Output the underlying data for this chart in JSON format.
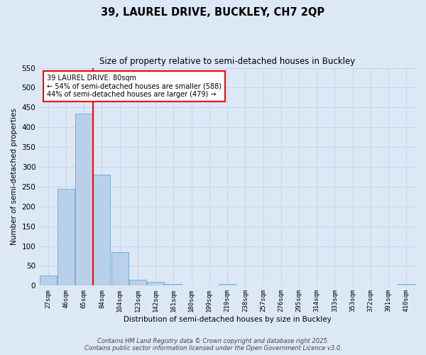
{
  "title_line1": "39, LAUREL DRIVE, BUCKLEY, CH7 2QP",
  "title_line2": "Size of property relative to semi-detached houses in Buckley",
  "xlabel": "Distribution of semi-detached houses by size in Buckley",
  "ylabel": "Number of semi-detached properties",
  "bar_labels": [
    "27sqm",
    "46sqm",
    "65sqm",
    "84sqm",
    "104sqm",
    "123sqm",
    "142sqm",
    "161sqm",
    "180sqm",
    "199sqm",
    "219sqm",
    "238sqm",
    "257sqm",
    "276sqm",
    "295sqm",
    "314sqm",
    "333sqm",
    "353sqm",
    "372sqm",
    "391sqm",
    "410sqm"
  ],
  "bar_values": [
    25,
    245,
    435,
    280,
    85,
    15,
    10,
    5,
    0,
    0,
    5,
    0,
    0,
    0,
    0,
    0,
    0,
    0,
    0,
    0,
    5
  ],
  "bar_color": "#b8d0ea",
  "bar_edge_color": "#6aaad4",
  "grid_color": "#c8d8ea",
  "background_color": "#dce8f5",
  "vline_color": "red",
  "ylim": [
    0,
    550
  ],
  "yticks": [
    0,
    50,
    100,
    150,
    200,
    250,
    300,
    350,
    400,
    450,
    500,
    550
  ],
  "annotation_text": "39 LAUREL DRIVE: 80sqm\n← 54% of semi-detached houses are smaller (588)\n44% of semi-detached houses are larger (479) →",
  "footer_line1": "Contains HM Land Registry data © Crown copyright and database right 2025.",
  "footer_line2": "Contains public sector information licensed under the Open Government Licence v3.0."
}
